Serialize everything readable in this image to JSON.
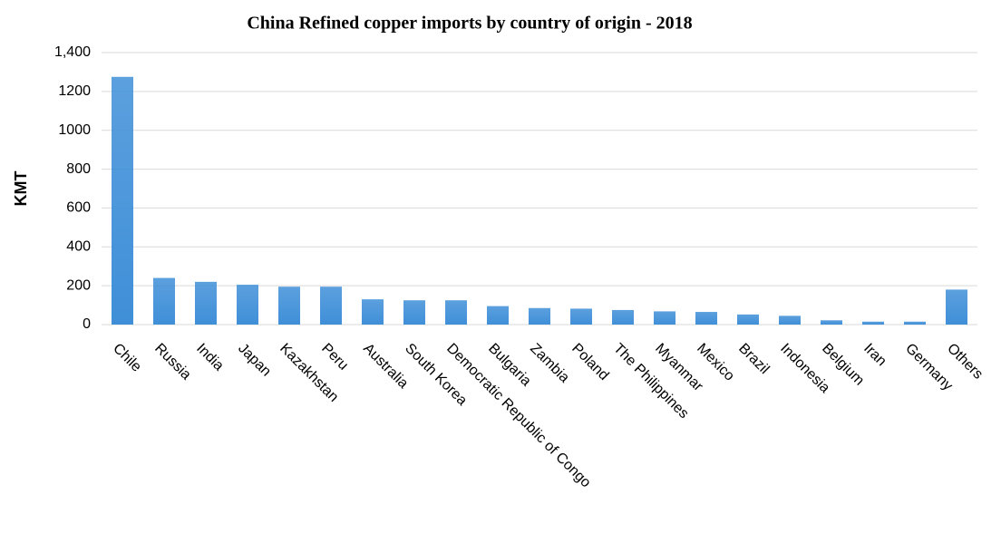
{
  "chart_data": {
    "type": "bar",
    "title": "China Refined copper imports by country of origin - 2018",
    "y_label": "KMT",
    "categories": [
      "Chile",
      "Russia",
      "India",
      "Japan",
      "Kazakhstan",
      "Peru",
      "Australia",
      "South Korea",
      "Democratic Republic of Congo",
      "Bulgaria",
      "Zambia",
      "Poland",
      "The Philippines",
      "Myanmar",
      "Mexico",
      "Brazil",
      "Indonesia",
      "Belgium",
      "Iran",
      "Germany",
      "Others"
    ],
    "values": [
      1275,
      240,
      220,
      205,
      195,
      195,
      130,
      125,
      125,
      95,
      85,
      82,
      75,
      68,
      65,
      52,
      45,
      22,
      15,
      15,
      180
    ],
    "color": "#3f8fd8",
    "ylim": [
      0,
      1400
    ],
    "yticks": [
      0,
      200,
      400,
      600,
      800,
      1000,
      1200,
      {
        "value": 1400,
        "label": "1,400"
      }
    ],
    "grid": true
  }
}
